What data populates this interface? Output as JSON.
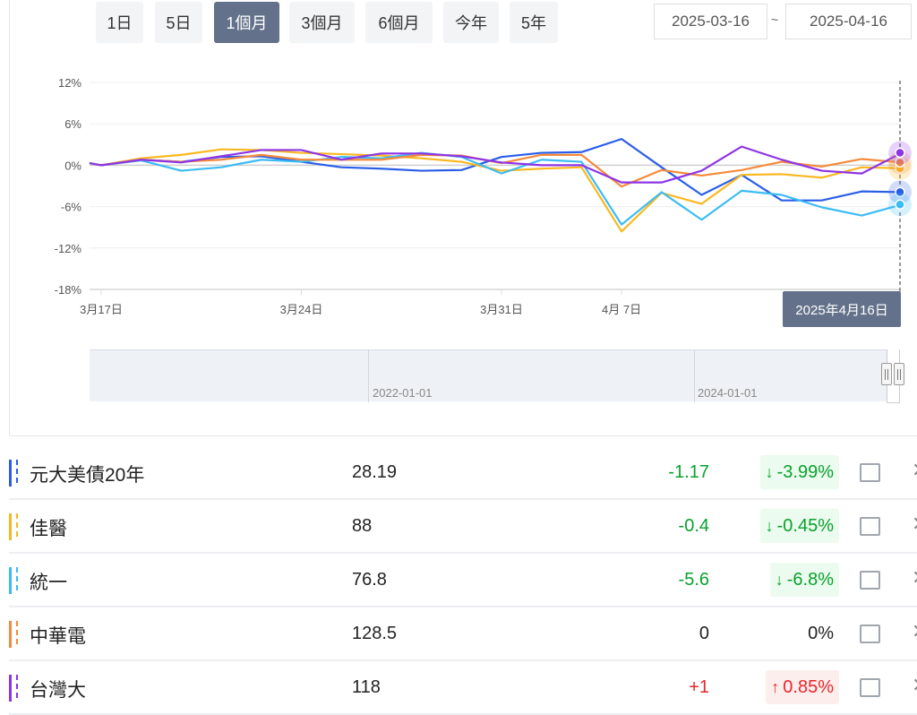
{
  "range_buttons": [
    {
      "label": "1日"
    },
    {
      "label": "5日"
    },
    {
      "label": "1個月",
      "active": true
    },
    {
      "label": "3個月"
    },
    {
      "label": "6個月"
    },
    {
      "label": "今年"
    },
    {
      "label": "5年"
    }
  ],
  "date_range": {
    "start": "2025-03-16",
    "separator": "~",
    "end": "2025-04-16"
  },
  "tooltip": "2025年4月16日",
  "navigator": {
    "labels": [
      "2022-01-01",
      "2024-01-01"
    ]
  },
  "chart_data": {
    "type": "line",
    "ylim": [
      -18,
      12
    ],
    "yticks": [
      "12%",
      "6%",
      "0%",
      "-6%",
      "-12%",
      "-18%"
    ],
    "ytick_values": [
      12,
      6,
      0,
      -6,
      -12,
      -18
    ],
    "x": [
      "3/17",
      "3/18",
      "3/19",
      "3/20",
      "3/21",
      "3/24",
      "3/25",
      "3/26",
      "3/27",
      "3/28",
      "3/31",
      "4/1",
      "4/2",
      "4/7",
      "4/8",
      "4/9",
      "4/10",
      "4/11",
      "4/14",
      "4/15",
      "4/16"
    ],
    "xtick_labels": [
      {
        "x": "3/17",
        "label": "3月17日"
      },
      {
        "x": "3/24",
        "label": "3月24日"
      },
      {
        "x": "3/31",
        "label": "3月31日"
      },
      {
        "x": "4/7",
        "label": "4月 7日"
      }
    ],
    "grid": true,
    "series": [
      {
        "name": "元大美債20年",
        "color": "#2a5ee8",
        "values": [
          0,
          0.8,
          0.5,
          1.2,
          1.3,
          0.5,
          -0.3,
          -0.5,
          -0.8,
          -0.7,
          1.2,
          1.8,
          1.9,
          3.8,
          -0.3,
          -4.3,
          -1.4,
          -5.1,
          -5.1,
          -3.8,
          -3.9
        ]
      },
      {
        "name": "佳醫",
        "color": "#f9b820",
        "values": [
          0,
          1.0,
          1.5,
          2.3,
          2.2,
          1.8,
          1.6,
          1.4,
          1.0,
          0.5,
          -0.8,
          -0.5,
          -0.3,
          -9.6,
          -4.0,
          -5.6,
          -1.4,
          -1.3,
          -1.8,
          -0.3,
          -0.45
        ]
      },
      {
        "name": "統一",
        "color": "#3bbcf5",
        "values": [
          0,
          0.7,
          -0.8,
          -0.3,
          0.8,
          0.5,
          1.2,
          1.0,
          1.8,
          1.2,
          -1.2,
          0.8,
          0.5,
          -8.6,
          -3.9,
          -7.9,
          -3.7,
          -4.3,
          -6.1,
          -7.3,
          -5.7
        ]
      },
      {
        "name": "中華電",
        "color": "#f58a3a",
        "values": [
          0,
          0.8,
          0.5,
          0.8,
          1.5,
          0.8,
          0.8,
          0.8,
          1.5,
          1.4,
          0.3,
          1.5,
          1.5,
          -3.1,
          -0.7,
          -1.5,
          -0.7,
          0.5,
          -0.2,
          0.9,
          0.4
        ]
      },
      {
        "name": "台灣大",
        "color": "#8e34e6",
        "values": [
          0,
          0.8,
          0.4,
          1.3,
          2.2,
          2.2,
          0.8,
          1.7,
          1.7,
          1.3,
          0.4,
          0,
          0,
          -2.5,
          -2.5,
          -0.8,
          2.7,
          0.8,
          -0.8,
          -1.2,
          1.8
        ]
      }
    ]
  },
  "table": [
    {
      "name": "元大美債20年",
      "color": "#2a5ee8",
      "price": "28.19",
      "change": "-1.17",
      "pct": "-3.99%",
      "dir": "down",
      "arrow": "↓"
    },
    {
      "name": "佳醫",
      "color": "#f9b820",
      "price": "88",
      "change": "-0.4",
      "pct": "-0.45%",
      "dir": "down",
      "arrow": "↓"
    },
    {
      "name": "統一",
      "color": "#3bbcf5",
      "price": "76.8",
      "change": "-5.6",
      "pct": "-6.8%",
      "dir": "down",
      "arrow": "↓"
    },
    {
      "name": "中華電",
      "color": "#f58a3a",
      "price": "128.5",
      "change": "0",
      "pct": "0%",
      "dir": "flat",
      "arrow": ""
    },
    {
      "name": "台灣大",
      "color": "#8e34e6",
      "price": "118",
      "change": "+1",
      "pct": "0.85%",
      "dir": "up",
      "arrow": "↑"
    }
  ],
  "icons": {
    "remove": "close-icon",
    "select": "checkbox"
  }
}
